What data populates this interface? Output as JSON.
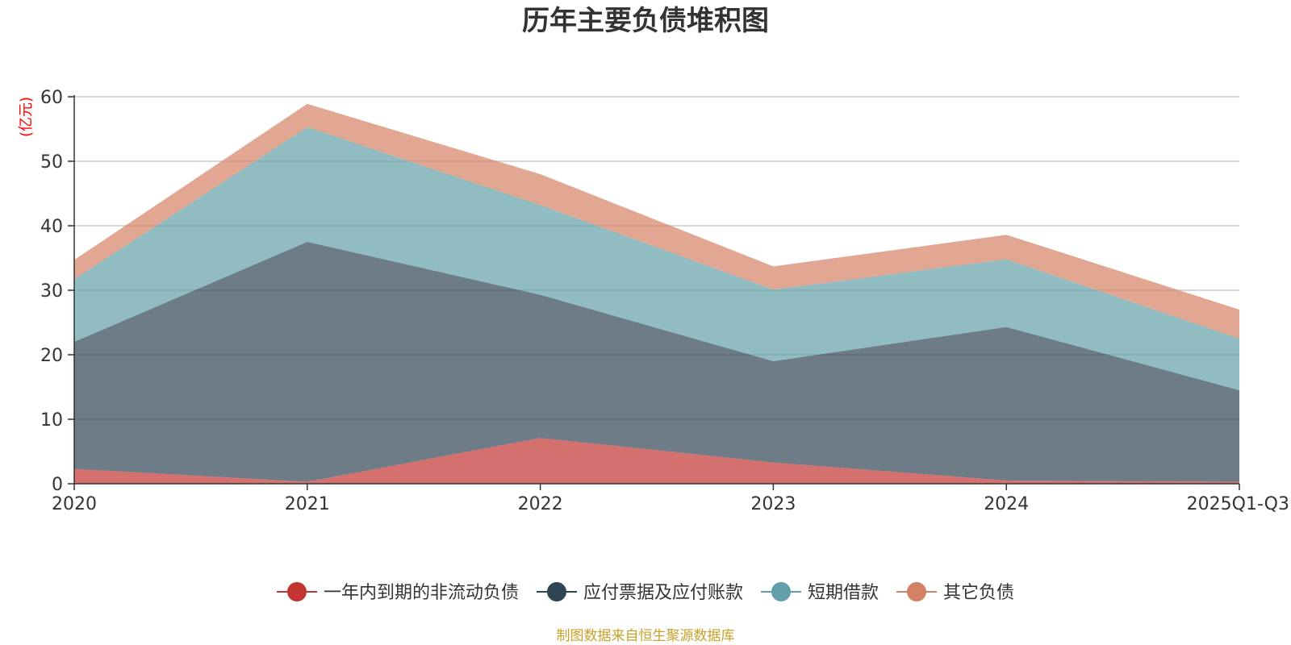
{
  "chart_data": {
    "type": "area",
    "stacked": true,
    "title": "历年主要负债堆积图",
    "unit_label": "(亿元)",
    "categories": [
      "2020",
      "2021",
      "2022",
      "2023",
      "2024",
      "2025Q1-Q3"
    ],
    "ylim": [
      0,
      60
    ],
    "yticks": [
      "0",
      "10",
      "20",
      "30",
      "40",
      "50",
      "60"
    ],
    "grid": true,
    "legend_position": "bottom",
    "series": [
      {
        "name": "一年内到期的非流动负债",
        "color": "#c23531",
        "values": [
          2.3,
          0.3,
          7.1,
          3.3,
          0.5,
          0.3
        ]
      },
      {
        "name": "应付票据及应付账款",
        "color": "#2f4554",
        "values": [
          19.7,
          37.2,
          22.2,
          15.7,
          23.8,
          14.2
        ]
      },
      {
        "name": "短期借款",
        "color": "#61a0a8",
        "values": [
          9.7,
          17.8,
          13.9,
          11.1,
          10.5,
          8.0
        ]
      },
      {
        "name": "其它负债",
        "color": "#d48265",
        "values": [
          3.0,
          3.6,
          4.8,
          3.6,
          3.8,
          4.5
        ]
      }
    ],
    "source": "制图数据来自恒生聚源数据库",
    "unit_color": "#ff0000",
    "source_color": "#c8a02a"
  }
}
